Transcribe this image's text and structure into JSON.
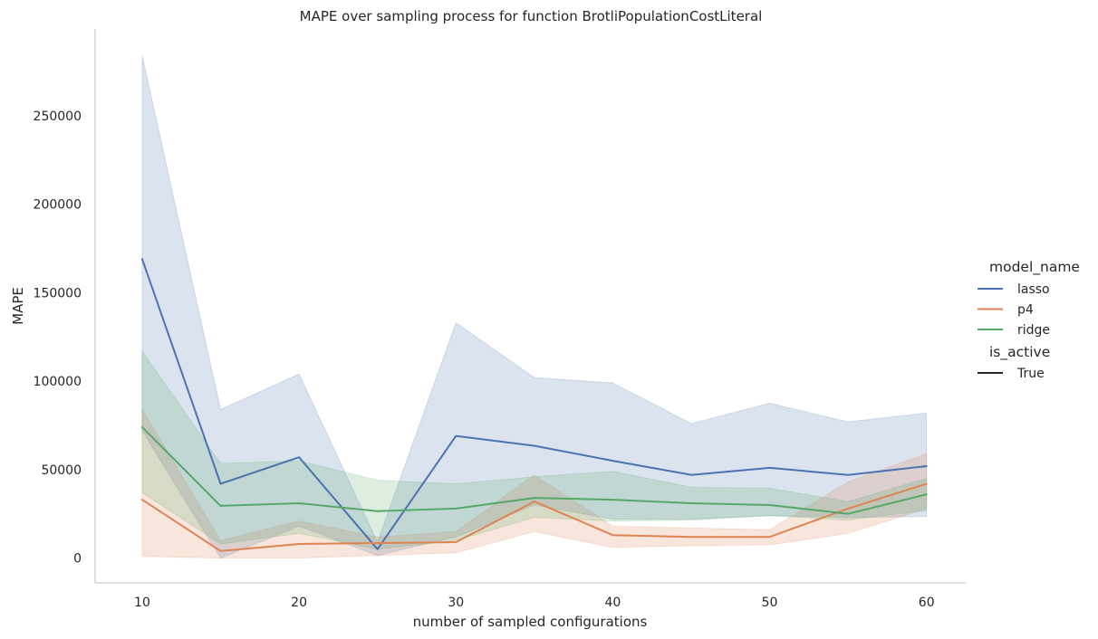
{
  "chart_data": {
    "type": "line",
    "title": "MAPE over sampling process for function BrotliPopulationCostLiteral",
    "xlabel": "number of sampled configurations",
    "ylabel": "MAPE",
    "xlim": [
      7,
      62.5
    ],
    "ylim": [
      -14000,
      299000
    ],
    "x_ticks": [
      10,
      20,
      30,
      40,
      50,
      60
    ],
    "y_ticks": [
      0,
      50000,
      100000,
      150000,
      200000,
      250000
    ],
    "grid": false,
    "legend_position": "right",
    "legend": {
      "hue_title": "model_name",
      "style_title": "is_active",
      "style_entries": [
        "True"
      ]
    },
    "x": [
      10,
      15,
      20,
      25,
      30,
      35,
      40,
      45,
      50,
      55,
      60
    ],
    "series": [
      {
        "name": "lasso",
        "color": "#4c72b0",
        "values": [
          169000,
          42000,
          57000,
          5000,
          69000,
          63500,
          55000,
          47000,
          51000,
          47000,
          52000
        ],
        "ci_low": [
          72000,
          0,
          18000,
          1500,
          12000,
          30000,
          22000,
          22000,
          24000,
          23000,
          23500
        ],
        "ci_high": [
          284000,
          84000,
          104000,
          9000,
          133000,
          102000,
          99000,
          76000,
          87500,
          77000,
          82000
        ]
      },
      {
        "name": "p4",
        "color": "#dd8452",
        "values": [
          33000,
          4000,
          8000,
          8500,
          9000,
          32000,
          13000,
          12000,
          12000,
          28000,
          42000
        ],
        "ci_low": [
          1000,
          0,
          0,
          1500,
          3000,
          15000,
          6000,
          7000,
          7500,
          14000,
          28000
        ],
        "ci_high": [
          84000,
          10000,
          21000,
          12000,
          15000,
          47000,
          18000,
          17000,
          16000,
          43000,
          59000
        ]
      },
      {
        "name": "ridge",
        "color": "#55a868",
        "values": [
          74000,
          29500,
          31000,
          26500,
          28000,
          34000,
          33000,
          31000,
          30000,
          25000,
          36000
        ],
        "ci_low": [
          37000,
          8000,
          14000,
          5000,
          10000,
          23000,
          21000,
          21500,
          24000,
          21500,
          27000
        ],
        "ci_high": [
          117000,
          53500,
          55000,
          44000,
          42000,
          46000,
          49000,
          40000,
          39500,
          32000,
          45000
        ]
      }
    ]
  }
}
